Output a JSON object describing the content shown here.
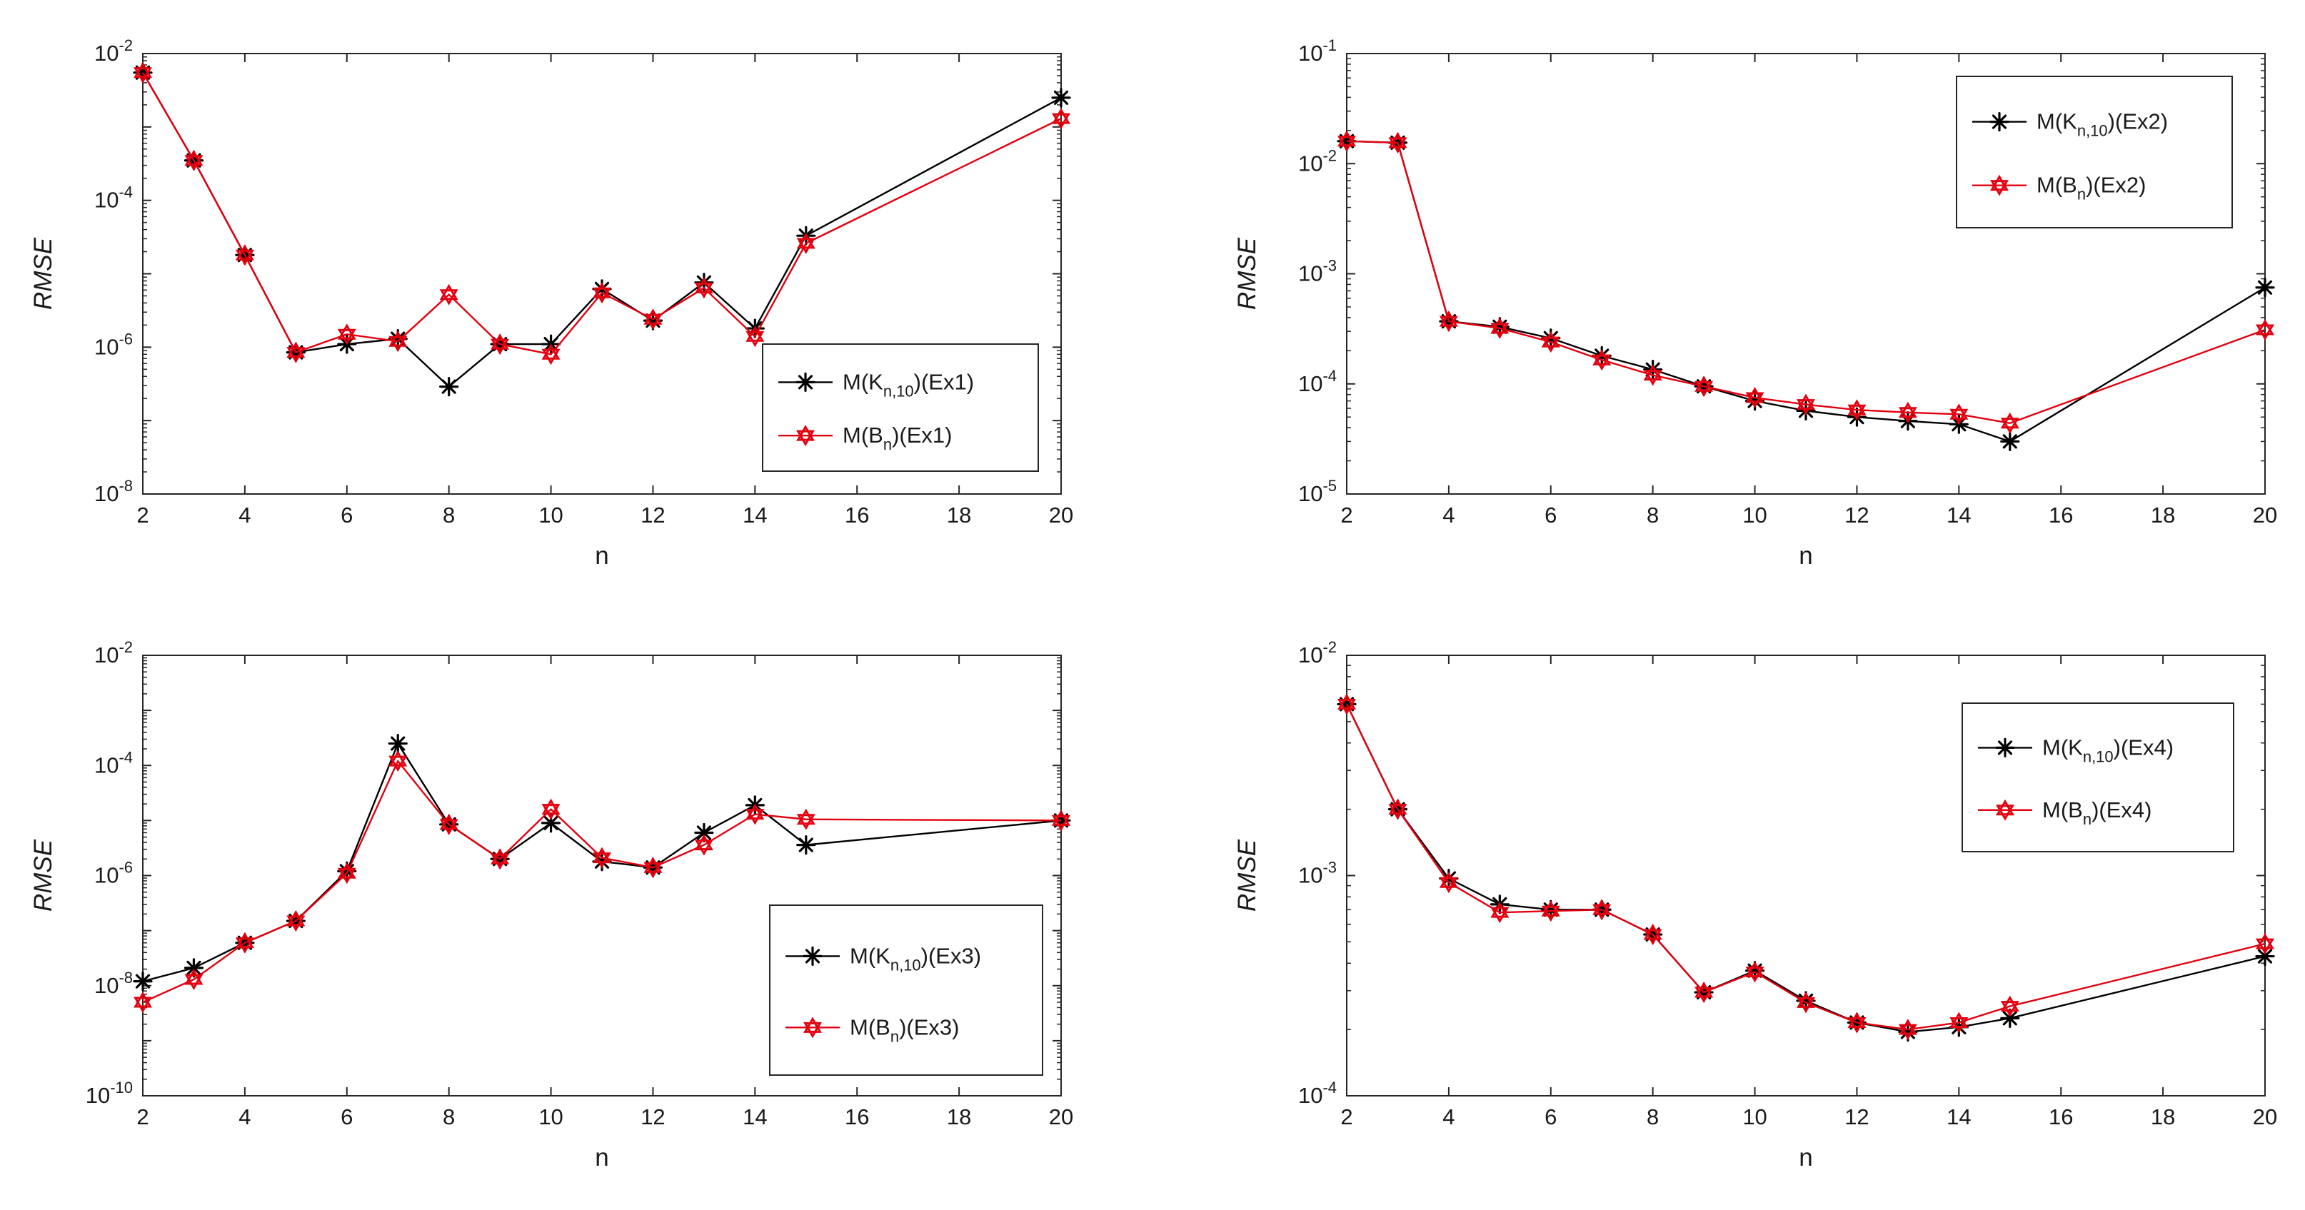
{
  "chart_data": [
    {
      "type": "line",
      "scale_y": "log",
      "xlabel": "n",
      "ylabel": "RMSE",
      "xlim": [
        2,
        20
      ],
      "xticks": [
        2,
        4,
        6,
        8,
        10,
        12,
        14,
        16,
        18,
        20
      ],
      "ylim_exp": [
        -8,
        -2
      ],
      "ytick_exps": [
        -8,
        -6,
        -4,
        -2
      ],
      "legend_pos": "lower-right",
      "series": [
        {
          "name": "M(K_{n,10})(Ex1)",
          "label_parts": [
            "M(K",
            "n,10",
            ")(Ex1)"
          ],
          "color": "#000000",
          "marker": "asterisk",
          "x": [
            2,
            3,
            4,
            5,
            6,
            7,
            8,
            9,
            10,
            11,
            12,
            13,
            14,
            15,
            20
          ],
          "y": [
            0.0055,
            0.00035,
            1.8e-05,
            8.5e-07,
            1.1e-06,
            1.3e-06,
            2.9e-07,
            1.1e-06,
            1.1e-06,
            6.2e-06,
            2.3e-06,
            7.6e-06,
            1.8e-06,
            3.3e-05,
            0.0025
          ]
        },
        {
          "name": "M(B_n)(Ex1)",
          "label_parts": [
            "M(B",
            "n",
            ")(Ex1)"
          ],
          "color": "#e3000f",
          "marker": "hexagram",
          "x": [
            2,
            3,
            4,
            5,
            6,
            7,
            8,
            9,
            10,
            11,
            12,
            13,
            14,
            15,
            20
          ],
          "y": [
            0.0055,
            0.00035,
            1.8e-05,
            8.5e-07,
            1.5e-06,
            1.2e-06,
            5.2e-06,
            1.1e-06,
            8e-07,
            5.5e-06,
            2.4e-06,
            6.4e-06,
            1.4e-06,
            2.6e-05,
            0.0013
          ]
        }
      ]
    },
    {
      "type": "line",
      "scale_y": "log",
      "xlabel": "n",
      "ylabel": "RMSE",
      "xlim": [
        2,
        20
      ],
      "xticks": [
        2,
        4,
        6,
        8,
        10,
        12,
        14,
        16,
        18,
        20
      ],
      "ylim_exp": [
        -5,
        -1
      ],
      "ytick_exps": [
        -5,
        -4,
        -3,
        -2,
        -1
      ],
      "legend_pos": "top-right",
      "series": [
        {
          "name": "M(K_{n,10})(Ex2)",
          "label_parts": [
            "M(K",
            "n,10",
            ")(Ex2)"
          ],
          "color": "#000000",
          "marker": "asterisk",
          "x": [
            2,
            3,
            4,
            5,
            6,
            7,
            8,
            9,
            10,
            11,
            12,
            13,
            14,
            15,
            20
          ],
          "y": [
            0.016,
            0.0155,
            0.00037,
            0.00033,
            0.00026,
            0.00018,
            0.000135,
            9.5e-05,
            7e-05,
            5.7e-05,
            5e-05,
            4.6e-05,
            4.3e-05,
            3e-05,
            0.00075
          ]
        },
        {
          "name": "M(B_n)(Ex2)",
          "label_parts": [
            "M(B",
            "n",
            ")(Ex2)"
          ],
          "color": "#e3000f",
          "marker": "hexagram",
          "x": [
            2,
            3,
            4,
            5,
            6,
            7,
            8,
            9,
            10,
            11,
            12,
            13,
            14,
            15,
            20
          ],
          "y": [
            0.016,
            0.0155,
            0.00037,
            0.00032,
            0.00024,
            0.000165,
            0.00012,
            9.5e-05,
            7.5e-05,
            6.5e-05,
            5.8e-05,
            5.5e-05,
            5.3e-05,
            4.4e-05,
            0.00031
          ]
        }
      ]
    },
    {
      "type": "line",
      "scale_y": "log",
      "xlabel": "n",
      "ylabel": "RMSE",
      "xlim": [
        2,
        20
      ],
      "xticks": [
        2,
        4,
        6,
        8,
        10,
        12,
        14,
        16,
        18,
        20
      ],
      "ylim_exp": [
        -10,
        -2
      ],
      "ytick_exps": [
        -10,
        -8,
        -6,
        -4,
        -2
      ],
      "legend_pos": "lower-right",
      "series": [
        {
          "name": "M(K_{n,10})(Ex3)",
          "label_parts": [
            "M(K",
            "n,10",
            ")(Ex3)"
          ],
          "color": "#000000",
          "marker": "asterisk",
          "x": [
            2,
            3,
            4,
            5,
            6,
            7,
            8,
            9,
            10,
            11,
            12,
            13,
            14,
            15,
            20
          ],
          "y": [
            1.2e-08,
            2.1e-08,
            6e-08,
            1.5e-07,
            1.2e-06,
            0.00025,
            8.5e-06,
            2e-06,
            9e-06,
            1.8e-06,
            1.4e-06,
            6e-06,
            1.9e-05,
            3.6e-06,
            1e-05
          ]
        },
        {
          "name": "M(B_n)(Ex3)",
          "label_parts": [
            "M(B",
            "n",
            ")(Ex3)"
          ],
          "color": "#e3000f",
          "marker": "hexagram",
          "x": [
            2,
            3,
            4,
            5,
            6,
            7,
            8,
            9,
            10,
            11,
            12,
            13,
            14,
            15,
            20
          ],
          "y": [
            5e-09,
            1.3e-08,
            6e-08,
            1.5e-07,
            1.1e-06,
            0.00012,
            8.5e-06,
            2e-06,
            1.6e-05,
            2.1e-06,
            1.4e-06,
            3.6e-06,
            1.3e-05,
            1.05e-05,
            1e-05
          ]
        }
      ]
    },
    {
      "type": "line",
      "scale_y": "log",
      "xlabel": "n",
      "ylabel": "RMSE",
      "xlim": [
        2,
        20
      ],
      "xticks": [
        2,
        4,
        6,
        8,
        10,
        12,
        14,
        16,
        18,
        20
      ],
      "ylim_exp": [
        -4,
        -2
      ],
      "ytick_exps": [
        -4,
        -3,
        -2
      ],
      "legend_pos": "top-right",
      "series": [
        {
          "name": "M(K_{n,10})(Ex4)",
          "label_parts": [
            "M(K",
            "n,10",
            ")(Ex4)"
          ],
          "color": "#000000",
          "marker": "asterisk",
          "x": [
            2,
            3,
            4,
            5,
            6,
            7,
            8,
            9,
            10,
            11,
            12,
            13,
            14,
            15,
            20
          ],
          "y": [
            0.006,
            0.002,
            0.00097,
            0.00074,
            0.0007,
            0.0007,
            0.00054,
            0.000295,
            0.00037,
            0.00027,
            0.000215,
            0.000195,
            0.000205,
            0.000225,
            0.00043
          ]
        },
        {
          "name": "M(B_n)(Ex4)",
          "label_parts": [
            "M(B",
            "n",
            ")(Ex4)"
          ],
          "color": "#e3000f",
          "marker": "hexagram",
          "x": [
            2,
            3,
            4,
            5,
            6,
            7,
            8,
            9,
            10,
            11,
            12,
            13,
            14,
            15,
            20
          ],
          "y": [
            0.006,
            0.002,
            0.00093,
            0.00068,
            0.00069,
            0.0007,
            0.00054,
            0.000295,
            0.000365,
            0.000265,
            0.000215,
            0.0002,
            0.000215,
            0.000255,
            0.00049
          ]
        }
      ]
    }
  ]
}
